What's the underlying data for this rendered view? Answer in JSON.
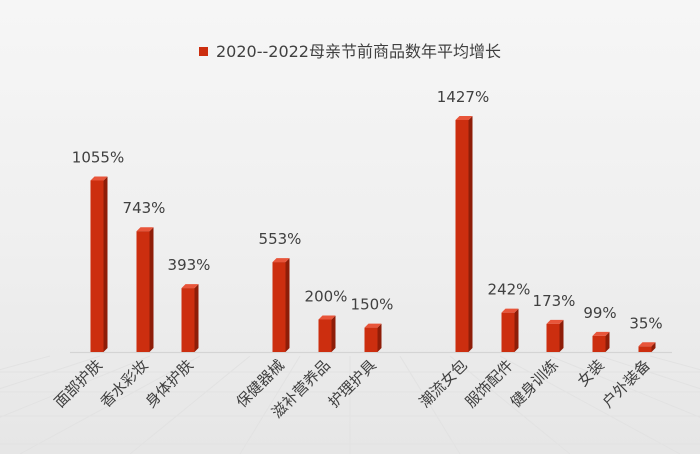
{
  "chart_data": {
    "type": "bar",
    "title": "",
    "legend": {
      "position": "top",
      "entries": [
        "2020--2022母亲节前商品数年平均增长"
      ]
    },
    "series": [
      {
        "name": "2020--2022母亲节前商品数年平均增长",
        "color": "#cc2e0f",
        "categories": [
          "面部护肤",
          "香水彩妆",
          "身体护肤",
          "保健器械",
          "滋补营养品",
          "护理护具",
          "潮流女包",
          "服饰配件",
          "健身训练",
          "女装",
          "户外装备"
        ],
        "values": [
          1055,
          743,
          393,
          553,
          200,
          150,
          1427,
          242,
          173,
          99,
          35
        ],
        "value_labels": [
          "1055%",
          "743%",
          "393%",
          "553%",
          "200%",
          "150%",
          "1427%",
          "242%",
          "173%",
          "99%",
          "35%"
        ]
      }
    ],
    "groups": [
      [
        "面部护肤",
        "香水彩妆",
        "身体护肤"
      ],
      [
        "保健器械",
        "滋补营养品",
        "护理护具"
      ],
      [
        "潮流女包",
        "服饰配件",
        "健身训练",
        "女装",
        "户外装备"
      ]
    ],
    "unit": "%",
    "ylim": [
      0,
      1500
    ],
    "grid": false,
    "xlabel": "",
    "ylabel": ""
  }
}
